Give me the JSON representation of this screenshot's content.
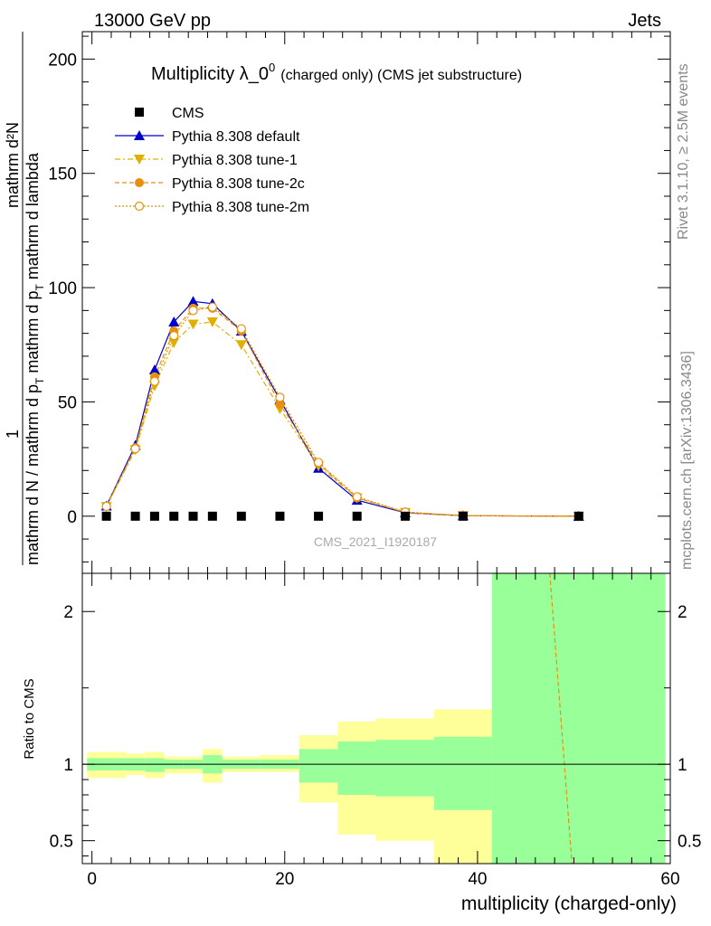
{
  "header": {
    "left": "13000 GeV pp",
    "right": "Jets"
  },
  "side": {
    "rivet": "Rivet 3.1.10, ≥ 2.5M events",
    "mcplots": "mcplots.cern.ch [arXiv:1306.3436]"
  },
  "watermark": "CMS_2021_I1920187",
  "colors": {
    "cms": "#000000",
    "default": "#0000cc",
    "tune1": "#e0b000",
    "tune2c": "#e8900a",
    "tune2m": "#e8900a",
    "band_yellow": "#ffff99",
    "band_green": "#99ff99"
  },
  "chart_data": [
    {
      "type": "scatter",
      "title_main": "Multiplicity λ_0",
      "title_sup": "0",
      "title_small": "(charged only) (CMS jet substructure)",
      "ylabel_numerator": "mathrm d²N",
      "ylabel_den_main": "mathrm d p",
      "ylabel_den_sub": "T",
      "ylabel_den_rest": "mathrm d lambda",
      "ylabel_prefactor_num": "1",
      "ylabel_prefactor_den": "mathrm d N / mathrm d p",
      "ylabel_prefactor_sub": "T",
      "ylim": [
        -25,
        212
      ],
      "yticks": [
        0,
        50,
        100,
        150,
        200
      ],
      "ytick_labels": [
        "0",
        "50",
        "100",
        "150",
        "200"
      ],
      "xlim": [
        -1,
        60
      ],
      "legend_position": "top-left",
      "series": [
        {
          "name": "CMS",
          "marker": "square",
          "x": [
            1.5,
            4.5,
            6.5,
            8.5,
            10.5,
            12.5,
            15.5,
            19.5,
            23.5,
            27.5,
            32.5,
            38.5,
            50.5
          ],
          "y": [
            0,
            0,
            0,
            0,
            0,
            0,
            0,
            0,
            0,
            0,
            0,
            0,
            0
          ]
        },
        {
          "name": "Pythia 8.308 default",
          "marker": "triangle-up",
          "x": [
            1.5,
            4.5,
            6.5,
            8.5,
            10.5,
            12.5,
            15.5,
            19.5,
            23.5,
            27.5,
            32.5,
            38.5,
            50.5
          ],
          "y": [
            4.5,
            31,
            64,
            85,
            94,
            93,
            81,
            51,
            21,
            7,
            1.5,
            0.2,
            0
          ]
        },
        {
          "name": "Pythia 8.308 tune-1",
          "marker": "triangle-down",
          "x": [
            1.5,
            4.5,
            6.5,
            8.5,
            10.5,
            12.5,
            15.5,
            19.5,
            23.5,
            27.5,
            32.5,
            38.5,
            50.5
          ],
          "y": [
            4.2,
            29,
            57,
            76,
            84,
            85,
            75,
            47,
            22,
            8,
            1.6,
            0.2,
            0
          ]
        },
        {
          "name": "Pythia 8.308 tune-2c",
          "marker": "circle-filled",
          "x": [
            1.5,
            4.5,
            6.5,
            8.5,
            10.5,
            12.5,
            15.5,
            19.5,
            23.5,
            27.5,
            32.5,
            38.5,
            50.5
          ],
          "y": [
            4.4,
            30,
            61,
            81,
            91,
            91,
            81,
            49,
            23,
            8,
            1.7,
            0.2,
            0
          ]
        },
        {
          "name": "Pythia 8.308 tune-2m",
          "marker": "circle-open",
          "x": [
            1.5,
            4.5,
            6.5,
            8.5,
            10.5,
            12.5,
            15.5,
            19.5,
            23.5,
            27.5,
            32.5,
            38.5,
            50.5
          ],
          "y": [
            4.3,
            29.5,
            59,
            79,
            90,
            91.5,
            82,
            52,
            23.5,
            8.5,
            1.8,
            0.2,
            0
          ]
        }
      ]
    },
    {
      "type": "area",
      "ylabel": "Ratio to CMS",
      "xlabel": "multiplicity (charged-only)",
      "ylim": [
        0.35,
        2.25
      ],
      "yticks": [
        0.5,
        1,
        2
      ],
      "ytick_labels": [
        "0.5",
        "1",
        "2"
      ],
      "xlim": [
        -1,
        60
      ],
      "xticks": [
        0,
        20,
        40,
        60
      ],
      "xtick_labels": [
        "0",
        "20",
        "40",
        "60"
      ],
      "bins": [
        {
          "x0": -0.5,
          "x1": 3.5,
          "y_lo": 0.91,
          "y_hi": 1.08,
          "g_lo": 0.96,
          "g_hi": 1.04
        },
        {
          "x0": 3.5,
          "x1": 5.5,
          "y_lo": 0.93,
          "y_hi": 1.07,
          "g_lo": 0.96,
          "g_hi": 1.04
        },
        {
          "x0": 5.5,
          "x1": 7.5,
          "y_lo": 0.91,
          "y_hi": 1.08,
          "g_lo": 0.95,
          "g_hi": 1.04
        },
        {
          "x0": 7.5,
          "x1": 9.5,
          "y_lo": 0.94,
          "y_hi": 1.05,
          "g_lo": 0.97,
          "g_hi": 1.03
        },
        {
          "x0": 9.5,
          "x1": 11.5,
          "y_lo": 0.94,
          "y_hi": 1.05,
          "g_lo": 0.97,
          "g_hi": 1.03
        },
        {
          "x0": 11.5,
          "x1": 13.5,
          "y_lo": 0.88,
          "y_hi": 1.1,
          "g_lo": 0.94,
          "g_hi": 1.06
        },
        {
          "x0": 13.5,
          "x1": 17.5,
          "y_lo": 0.95,
          "y_hi": 1.05,
          "g_lo": 0.97,
          "g_hi": 1.03
        },
        {
          "x0": 17.5,
          "x1": 21.5,
          "y_lo": 0.95,
          "y_hi": 1.06,
          "g_lo": 0.97,
          "g_hi": 1.03
        },
        {
          "x0": 21.5,
          "x1": 25.5,
          "y_lo": 0.75,
          "y_hi": 1.19,
          "g_lo": 0.88,
          "g_hi": 1.1
        },
        {
          "x0": 25.5,
          "x1": 29.5,
          "y_lo": 0.54,
          "y_hi": 1.28,
          "g_lo": 0.8,
          "g_hi": 1.15
        },
        {
          "x0": 29.5,
          "x1": 35.5,
          "y_lo": 0.5,
          "y_hi": 1.3,
          "g_lo": 0.79,
          "g_hi": 1.16
        },
        {
          "x0": 35.5,
          "x1": 41.5,
          "y_lo": 0.35,
          "y_hi": 1.36,
          "g_lo": 0.7,
          "g_hi": 1.18
        },
        {
          "x0": 41.5,
          "x1": 59.5,
          "y_lo": 0.35,
          "y_hi": 2.25,
          "g_lo": 0.35,
          "g_hi": 2.25
        }
      ],
      "lines": [
        {
          "name": "Pythia 8.308 tune-2c",
          "x": [
            47.5,
            49.8
          ],
          "y": [
            2.25,
            0.35
          ]
        }
      ]
    }
  ]
}
